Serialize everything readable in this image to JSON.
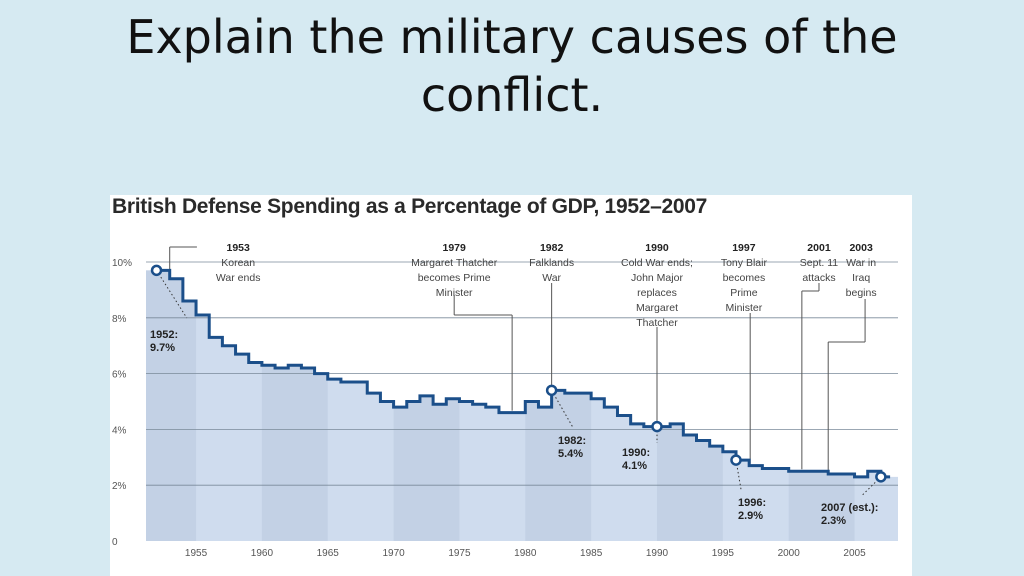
{
  "slide": {
    "title_line1": "Explain the military causes of the",
    "title_line2": "conflict."
  },
  "chart_data": {
    "type": "line",
    "title": "British Defense Spending as a Percentage of GDP, 1952–2007",
    "xlabel": "",
    "ylabel": "",
    "xlim": [
      1951.2,
      2008.3
    ],
    "ylim": [
      0,
      10
    ],
    "grid": true,
    "y_ticks": [
      0,
      2,
      4,
      6,
      8,
      10
    ],
    "y_tick_labels": [
      "0",
      "2%",
      "4%",
      "6%",
      "8%",
      "10%"
    ],
    "x_ticks": [
      1955,
      1960,
      1965,
      1970,
      1975,
      1980,
      1985,
      1990,
      1995,
      2000,
      2005
    ],
    "x_tick_labels": [
      "1955",
      "1960",
      "1965",
      "1970",
      "1975",
      "1980",
      "1985",
      "1990",
      "1995",
      "2000",
      "2005"
    ],
    "colors": {
      "line": "#1b4f8a",
      "fill": "#cfdcee",
      "band": "#b9c9de",
      "grid": "#7a8a9a",
      "annotation": "#444444"
    },
    "series": [
      {
        "x": [
          1952,
          1953,
          1954,
          1955,
          1956,
          1957,
          1958,
          1959,
          1960,
          1961,
          1962,
          1963,
          1964,
          1965,
          1966,
          1967,
          1968,
          1969,
          1970,
          1971,
          1972,
          1973,
          1974,
          1975,
          1976,
          1977,
          1978,
          1979,
          1980,
          1981,
          1982,
          1983,
          1984,
          1985,
          1986,
          1987,
          1988,
          1989,
          1990,
          1991,
          1992,
          1993,
          1994,
          1995,
          1996,
          1997,
          1998,
          1999,
          2000,
          2001,
          2002,
          2003,
          2004,
          2005,
          2006,
          2007
        ],
        "y": [
          9.7,
          9.4,
          8.6,
          8.1,
          7.3,
          7.0,
          6.7,
          6.4,
          6.3,
          6.2,
          6.3,
          6.2,
          6.0,
          5.8,
          5.7,
          5.7,
          5.3,
          5.0,
          4.8,
          5.0,
          5.2,
          4.9,
          5.1,
          5.0,
          4.9,
          4.8,
          4.6,
          4.6,
          5.0,
          4.8,
          5.4,
          5.3,
          5.3,
          5.1,
          4.8,
          4.5,
          4.2,
          4.1,
          4.1,
          4.2,
          3.8,
          3.6,
          3.4,
          3.2,
          2.9,
          2.7,
          2.6,
          2.6,
          2.5,
          2.5,
          2.5,
          2.4,
          2.4,
          2.3,
          2.5,
          2.3
        ]
      }
    ],
    "highlighted_points": [
      {
        "x": 1952,
        "y": 9.7,
        "label_lines": [
          "1952:",
          "9.7%"
        ]
      },
      {
        "x": 1982,
        "y": 5.4,
        "label_lines": [
          "1982:",
          "5.4%"
        ]
      },
      {
        "x": 1990,
        "y": 4.1,
        "label_lines": [
          "1990:",
          "4.1%"
        ]
      },
      {
        "x": 1996,
        "y": 2.9,
        "label_lines": [
          "1996:",
          "2.9%"
        ]
      },
      {
        "x": 2007,
        "y": 2.3,
        "label_lines": [
          "2007 (est.):",
          "2.3%"
        ]
      }
    ],
    "events": [
      {
        "x": 1953,
        "lines": [
          "1953",
          "Korean",
          "War ends"
        ]
      },
      {
        "x": 1979,
        "lines": [
          "1979",
          "Margaret Thatcher",
          "becomes Prime",
          "Minister"
        ]
      },
      {
        "x": 1982,
        "lines": [
          "1982",
          "Falklands",
          "War"
        ]
      },
      {
        "x": 1990,
        "lines": [
          "1990",
          "Cold War ends;",
          "John Major",
          "replaces",
          "Margaret",
          "Thatcher"
        ]
      },
      {
        "x": 1997,
        "lines": [
          "1997",
          "Tony Blair",
          "becomes",
          "Prime",
          "Minister"
        ]
      },
      {
        "x": 2001,
        "lines": [
          "2001",
          "Sept. 11",
          "attacks"
        ]
      },
      {
        "x": 2003,
        "lines": [
          "2003",
          "War in",
          "Iraq",
          "begins"
        ]
      }
    ],
    "bands": [
      [
        1951.2,
        1955
      ],
      [
        1960,
        1965
      ],
      [
        1970,
        1975
      ],
      [
        1980,
        1985
      ],
      [
        1990,
        1995
      ],
      [
        2000,
        2005
      ]
    ]
  }
}
